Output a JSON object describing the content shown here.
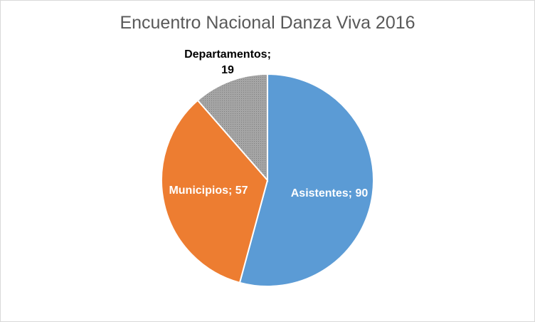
{
  "chart_data": {
    "type": "pie",
    "title": "Encuentro Nacional Danza Viva 2016",
    "values": [
      90,
      57,
      19
    ],
    "value_labels": [
      "Asistentes; 90",
      "Municipios; 57",
      "Departamentos; 19"
    ],
    "colors": [
      "#5b9bd5",
      "#ed7d31",
      "#a5a5a5"
    ]
  }
}
